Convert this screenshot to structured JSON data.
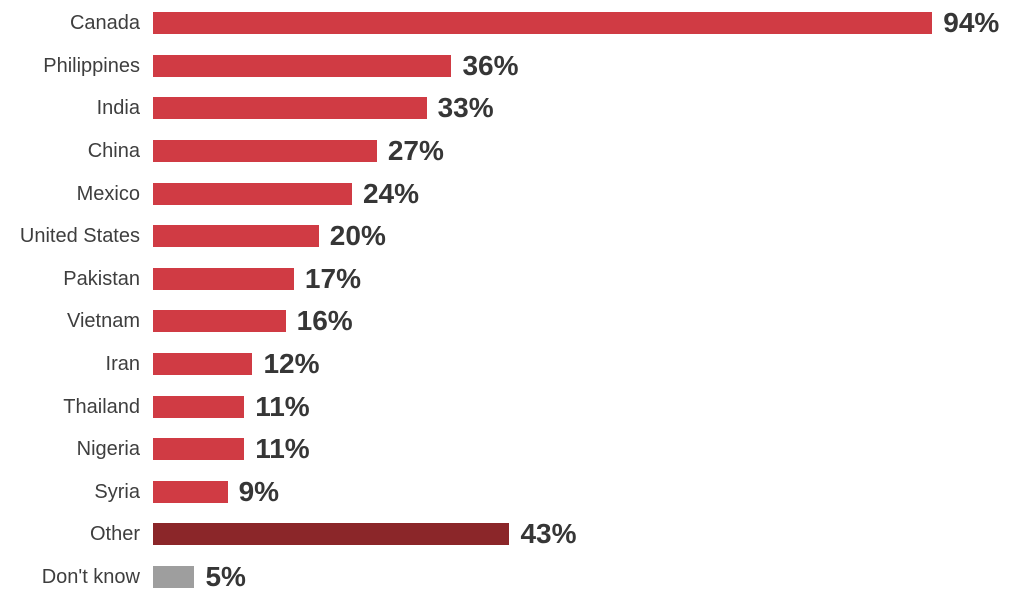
{
  "chart_data": {
    "type": "bar",
    "orientation": "horizontal",
    "title": "",
    "xlabel": "",
    "ylabel": "",
    "xlim": [
      0,
      100
    ],
    "grid": false,
    "legend": false,
    "value_suffix": "%",
    "categories": [
      "Canada",
      "Philippines",
      "India",
      "China",
      "Mexico",
      "United States",
      "Pakistan",
      "Vietnam",
      "Iran",
      "Thailand",
      "Nigeria",
      "Syria",
      "Other",
      "Don't know"
    ],
    "values": [
      94,
      36,
      33,
      27,
      24,
      20,
      17,
      16,
      12,
      11,
      11,
      9,
      43,
      5
    ],
    "value_labels": [
      "94%",
      "36%",
      "33%",
      "27%",
      "24%",
      "20%",
      "17%",
      "16%",
      "12%",
      "11%",
      "11%",
      "9%",
      "43%",
      "5%"
    ],
    "bar_colors": [
      "#D03B44",
      "#D03B44",
      "#D03B44",
      "#D03B44",
      "#D03B44",
      "#D03B44",
      "#D03B44",
      "#D03B44",
      "#D03B44",
      "#D03B44",
      "#D03B44",
      "#D03B44",
      "#8B2629",
      "#9E9E9E"
    ]
  },
  "colors": {
    "bar_red": "#D03B44",
    "bar_maroon": "#8B2629",
    "bar_gray": "#9E9E9E",
    "label_text": "#3e3e3e",
    "value_text": "#363636",
    "background": "#ffffff"
  }
}
